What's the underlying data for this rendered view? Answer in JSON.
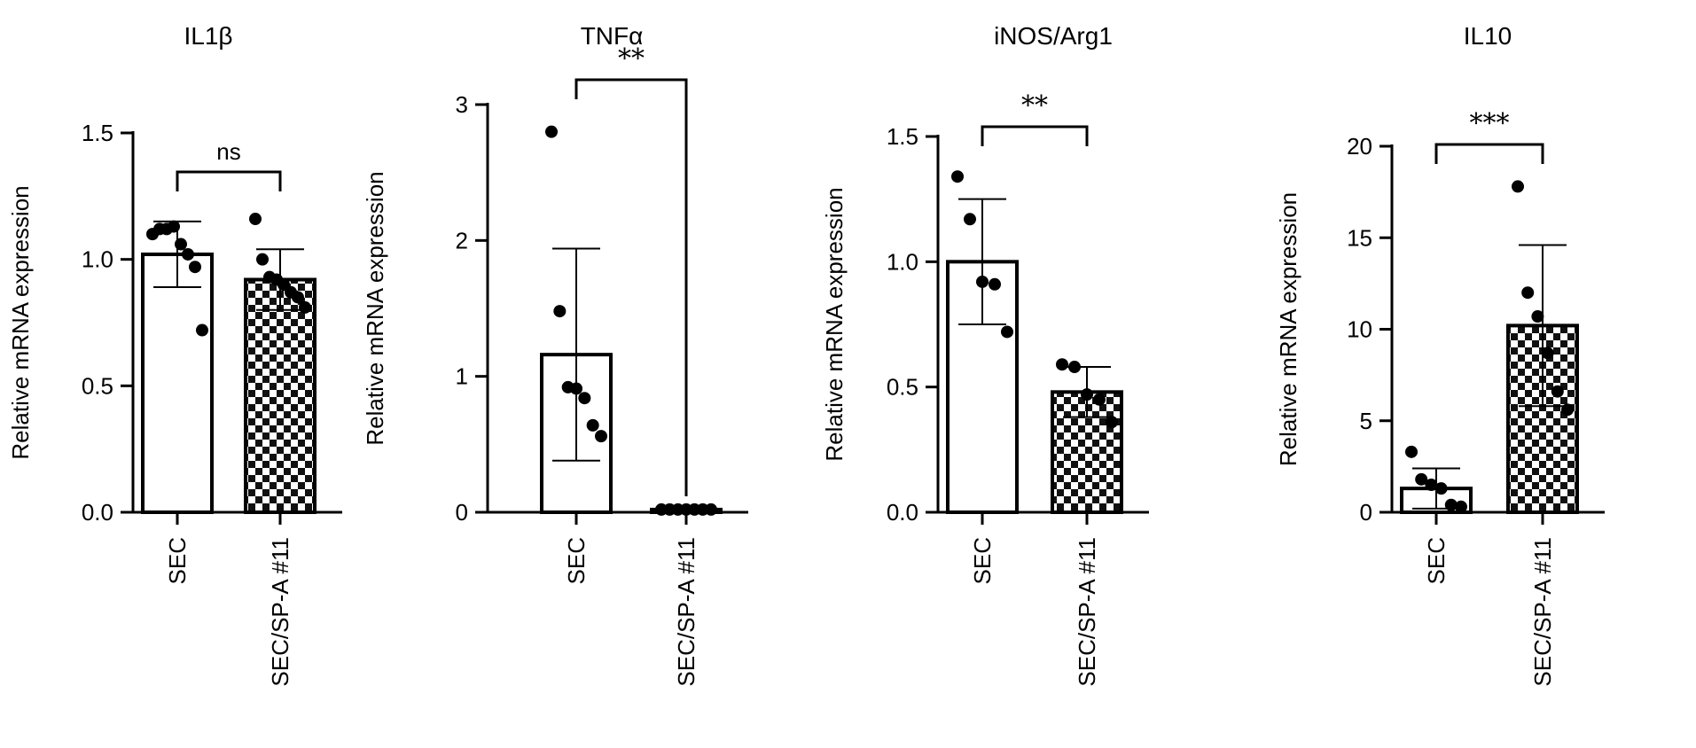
{
  "figure": {
    "panel_count": 4
  },
  "chart_data": [
    {
      "type": "bar",
      "title": "IL1β",
      "ylabel": "Relative mRNA expression",
      "xlabel": "",
      "categories": [
        "SEC",
        "SEC/SP-A #11"
      ],
      "ylim": [
        0,
        1.5
      ],
      "yticks": [
        "0.0",
        "0.5",
        "1.0",
        "1.5"
      ],
      "grid": false,
      "legend": "none",
      "bar_fill": [
        "open",
        "checkerboard"
      ],
      "series": [
        {
          "values": [
            1.02,
            0.92
          ],
          "sd": [
            0.13,
            0.12
          ],
          "points": [
            [
              1.1,
              1.12,
              1.12,
              1.13,
              1.06,
              1.02,
              0.97,
              0.72
            ],
            [
              1.16,
              1.0,
              0.93,
              0.92,
              0.9,
              0.87,
              0.85,
              0.81
            ]
          ]
        }
      ],
      "significance": "ns"
    },
    {
      "type": "bar",
      "title": "TNFα",
      "ylabel": "Relative mRNA expression",
      "xlabel": "",
      "categories": [
        "SEC",
        "SEC/SP-A #11"
      ],
      "ylim": [
        0,
        3
      ],
      "yticks": [
        "0",
        "1",
        "2",
        "3"
      ],
      "grid": false,
      "legend": "none",
      "bar_fill": [
        "open",
        "checkerboard"
      ],
      "series": [
        {
          "values": [
            1.16,
            0.02
          ],
          "sd": [
            0.78,
            0.01
          ],
          "points": [
            [
              2.8,
              1.48,
              0.92,
              0.91,
              0.84,
              0.64,
              0.56
            ],
            [
              0.02,
              0.02,
              0.02,
              0.02,
              0.02,
              0.02,
              0.02
            ]
          ]
        }
      ],
      "significance": "**"
    },
    {
      "type": "bar",
      "title": "iNOS/Arg1",
      "ylabel": "Relative mRNA expression",
      "xlabel": "",
      "categories": [
        "SEC",
        "SEC/SP-A #11"
      ],
      "ylim": [
        0,
        1.5
      ],
      "yticks": [
        "0.0",
        "0.5",
        "1.0",
        "1.5"
      ],
      "grid": false,
      "legend": "none",
      "bar_fill": [
        "open",
        "checkerboard"
      ],
      "series": [
        {
          "values": [
            1.0,
            0.48
          ],
          "sd": [
            0.25,
            0.1
          ],
          "points": [
            [
              1.34,
              1.17,
              0.92,
              0.91,
              0.72
            ],
            [
              0.59,
              0.58,
              0.47,
              0.45,
              0.36
            ]
          ]
        }
      ],
      "significance": "**"
    },
    {
      "type": "bar",
      "title": "IL10",
      "ylabel": "Relative mRNA expression",
      "xlabel": "",
      "categories": [
        "SEC",
        "SEC/SP-A #11"
      ],
      "ylim": [
        0,
        20
      ],
      "yticks": [
        "0",
        "5",
        "10",
        "15",
        "20"
      ],
      "grid": false,
      "legend": "none",
      "bar_fill": [
        "open",
        "checkerboard"
      ],
      "series": [
        {
          "values": [
            1.3,
            10.2
          ],
          "sd": [
            1.1,
            4.4
          ],
          "points": [
            [
              3.3,
              1.8,
              1.5,
              1.3,
              0.4,
              0.3
            ],
            [
              17.8,
              12.0,
              10.7,
              8.7,
              6.6,
              5.6
            ]
          ]
        }
      ],
      "significance": "***"
    }
  ]
}
